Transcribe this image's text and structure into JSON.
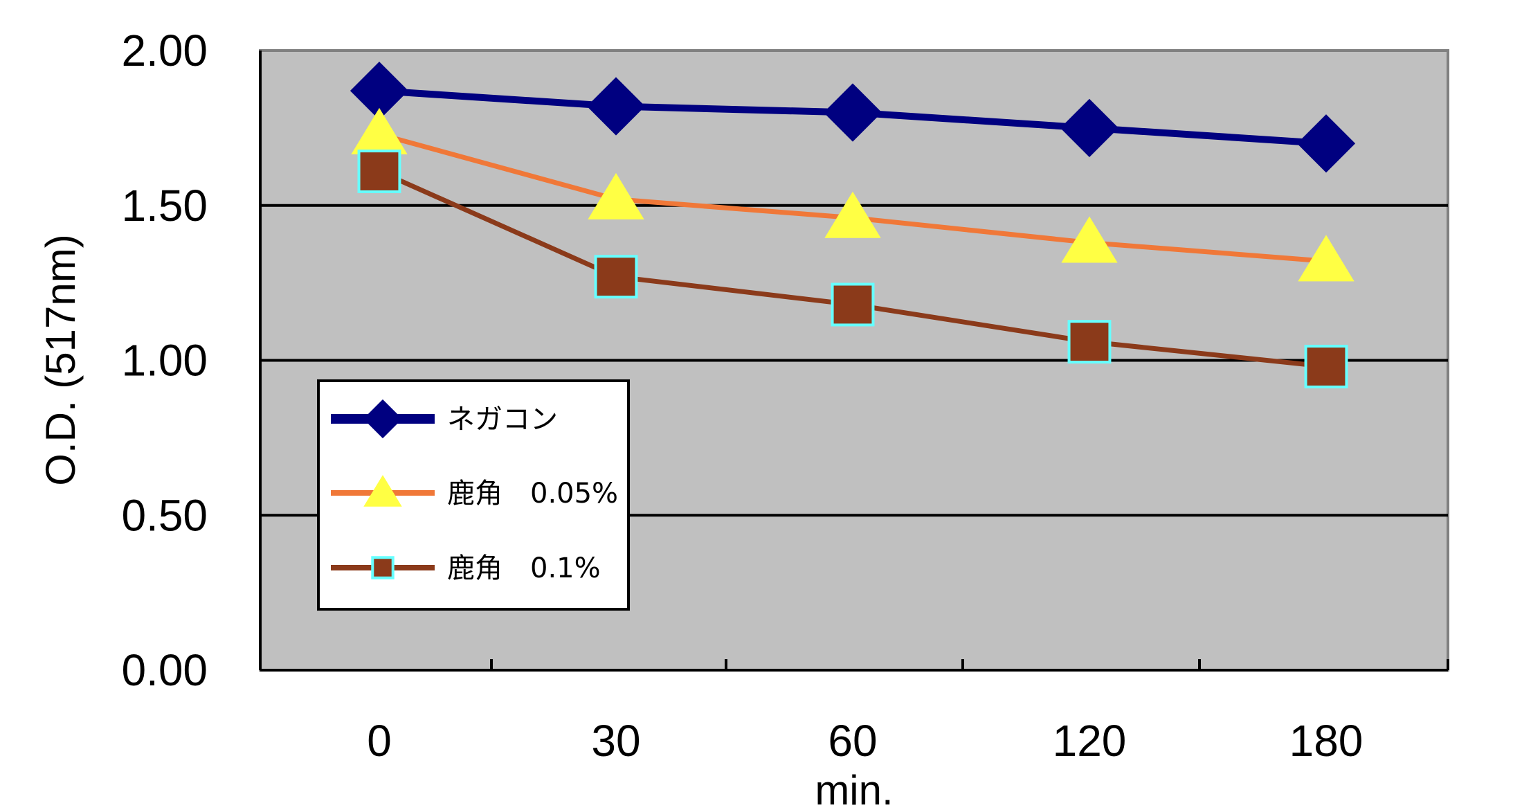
{
  "chart_data": {
    "type": "line",
    "categories": [
      "0",
      "30",
      "60",
      "120",
      "180"
    ],
    "xlabel": "min.",
    "ylabel": "O.D. (517nm)",
    "ylim": [
      0,
      2
    ],
    "y_ticks": [
      "0.00",
      "0.50",
      "1.00",
      "1.50",
      "2.00"
    ],
    "grid": true,
    "legend_position": "lower-left",
    "plot_background": "#c0c0c0",
    "series": [
      {
        "name": "ネガコン",
        "values": [
          1.87,
          1.82,
          1.8,
          1.75,
          1.7
        ],
        "color": "#000080",
        "marker": "diamond",
        "marker_fill": "#000080",
        "marker_stroke": "#000080"
      },
      {
        "name": "鹿角　0.05%",
        "values": [
          1.73,
          1.52,
          1.46,
          1.38,
          1.32
        ],
        "color": "#f07838",
        "marker": "triangle",
        "marker_fill": "#ffff44",
        "marker_stroke": "#ffff44"
      },
      {
        "name": "鹿角　0.1%",
        "values": [
          1.61,
          1.27,
          1.18,
          1.06,
          0.98
        ],
        "color": "#8b3a1a",
        "marker": "square",
        "marker_fill": "#8b3a1a",
        "marker_stroke": "#66ffff"
      }
    ]
  }
}
